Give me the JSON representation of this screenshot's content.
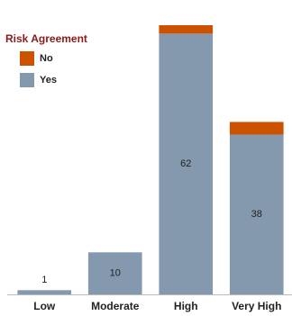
{
  "chart_data": {
    "type": "stacked-bar",
    "categories": [
      "Low",
      "Moderate",
      "High",
      "Very High"
    ],
    "legend_title": "Risk Agreement",
    "legend": "top-left",
    "series": [
      {
        "name": "No",
        "color": "#cc5200",
        "values": [
          0,
          0,
          2,
          3
        ]
      },
      {
        "name": "Yes",
        "color": "#8499ad",
        "values": [
          1,
          10,
          62,
          38
        ],
        "data_labels": true
      }
    ]
  }
}
